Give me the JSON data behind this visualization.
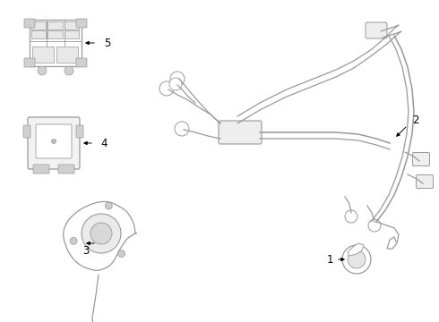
{
  "background_color": "#ffffff",
  "line_color": "#999999",
  "text_color": "#000000",
  "label_fontsize": 8.5,
  "fig_w": 4.9,
  "fig_h": 3.6,
  "dpi": 100
}
